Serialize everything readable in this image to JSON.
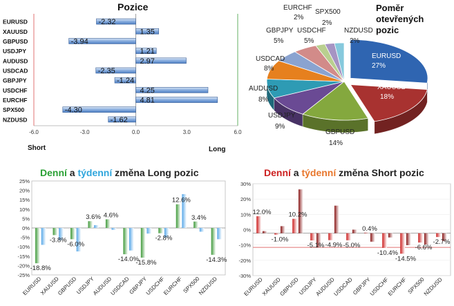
{
  "positions": {
    "title": "Pozice",
    "left_label": "Short",
    "right_label": "Long",
    "chart_data": {
      "type": "bar",
      "orientation": "horizontal",
      "title": "Pozice",
      "categories": [
        "EURUSD",
        "XAUUSD",
        "GBPUSD",
        "USDJPY",
        "AUDUSD",
        "USDCAD",
        "GBPJPY",
        "USDCHF",
        "EURCHF",
        "SPX500",
        "NZDUSD"
      ],
      "values": [
        -2.32,
        1.35,
        -3.94,
        1.21,
        2.97,
        -2.35,
        -1.24,
        4.25,
        4.81,
        -4.3,
        -1.62
      ],
      "value_labels": [
        "-2.32",
        "1.35",
        "-3.94",
        "1.21",
        "2.97",
        "-2.35",
        "-1.24",
        "4.25",
        "4.81",
        "-4.30",
        "-1.62"
      ],
      "xlim": [
        -6,
        6
      ],
      "x_ticks": [
        "-6.0",
        "-3.0",
        "0.0",
        "3.0",
        "6.0"
      ],
      "colors": {
        "bar": "#4d7fc4",
        "bar_light": "#dce8f6",
        "short_line": "#e07070",
        "long_line": "#63b163"
      }
    }
  },
  "ratio": {
    "title_lines": [
      "Poměr",
      "otevřených",
      "pozic"
    ],
    "chart_data": {
      "type": "pie",
      "labels": [
        "EURUSD",
        "XAUUSD",
        "GBPUSD",
        "USDJPY",
        "AUDUSD",
        "USDCAD",
        "GBPJPY",
        "USDCHF",
        "SPX500",
        "EURCHF",
        "NZDUSD"
      ],
      "values": [
        27,
        18,
        14,
        9,
        8,
        8,
        5,
        5,
        2,
        2,
        2
      ],
      "percent_labels": [
        "27%",
        "18%",
        "14%",
        "9%",
        "8%",
        "8%",
        "5%",
        "5%",
        "2%",
        "2%",
        "2%"
      ],
      "colors": [
        "#2f65b1",
        "#a83230",
        "#84a83e",
        "#6a4a94",
        "#2e9bb4",
        "#e6801e",
        "#8aa3d0",
        "#d28b89",
        "#b9cf8f",
        "#a694c3",
        "#86c9dd"
      ]
    }
  },
  "long_change": {
    "title_parts": [
      {
        "text": "Denní",
        "color": "#2aa034"
      },
      {
        "text": " a ",
        "color": "#222222"
      },
      {
        "text": "týdenní",
        "color": "#2ea5dc"
      },
      {
        "text": " změna Long pozic",
        "color": "#222222"
      }
    ],
    "chart_data": {
      "type": "bar",
      "title": "Denní a týdenní změna Long pozic",
      "categories": [
        "EURUSD",
        "XAUUSD",
        "GBPUSD",
        "USDJPY",
        "AUDUSD",
        "USDCAD",
        "GBPJPY",
        "USDCHF",
        "EURCHF",
        "SPX500",
        "NZDUSD"
      ],
      "series": [
        {
          "name": "Denní",
          "values": [
            -18.8,
            -3.8,
            -6.0,
            3.6,
            4.6,
            -14.0,
            -15.8,
            -2.8,
            12.6,
            3.4,
            -14.3
          ],
          "color": "#3f9a3a"
        },
        {
          "name": "týdenní",
          "values": [
            -9.0,
            -6.5,
            -12.5,
            1.5,
            -1.0,
            -12.0,
            -3.0,
            -5.0,
            18.0,
            -2.0,
            -6.0
          ],
          "color": "#58a8e8"
        }
      ],
      "data_labels": [
        "-18.8%",
        "-3.8%",
        "-6.0%",
        "3.6%",
        "4.6%",
        "-14.0%",
        "-15.8%",
        "-2.8%",
        "12.6%",
        "3.4%",
        "-14.3%"
      ],
      "ylim": [
        -25,
        25
      ],
      "y_ticks": [
        "25%",
        "20%",
        "15%",
        "10%",
        "5%",
        "0%",
        "-5%",
        "-10%",
        "-15%",
        "-20%",
        "-25%"
      ]
    }
  },
  "short_change": {
    "title_parts": [
      {
        "text": "Denní",
        "color": "#cc2020"
      },
      {
        "text": " a ",
        "color": "#222222"
      },
      {
        "text": "týdenní",
        "color": "#e8762b"
      },
      {
        "text": " změna Short pozic",
        "color": "#222222"
      }
    ],
    "chart_data": {
      "type": "bar",
      "title": "Denní a týdenní změna Short pozic",
      "categories": [
        "EURUSD",
        "XAUUSD",
        "GBPUSD",
        "USDJPY",
        "AUDUSD",
        "USDCAD",
        "GBPJPY",
        "USDCHF",
        "EURCHF",
        "SPX500",
        "NZDUSD"
      ],
      "series": [
        {
          "name": "Denní",
          "values": [
            12.0,
            -1.0,
            10.2,
            -5.1,
            -4.9,
            -5.0,
            0.4,
            -10.4,
            -14.5,
            -6.6,
            -2.7
          ],
          "color": "#cc1f1f"
        },
        {
          "name": "týdenní",
          "values": [
            1.5,
            5.0,
            31.0,
            -10.0,
            19.5,
            2.5,
            -6.0,
            -3.0,
            -8.5,
            -8.0,
            -5.5
          ],
          "color": "#8a1a1a"
        }
      ],
      "data_labels": [
        "12.0%",
        "-1.0%",
        "10.2%",
        "-5.1%",
        "-4.9%",
        "-5.0%",
        "0.4%",
        "-10.4%",
        "-14.5%",
        "-6.6%",
        "-2.7%"
      ],
      "ylim": [
        -30,
        35
      ],
      "y_ticks": [
        "30%",
        "20%",
        "10%",
        "0%",
        "-10%",
        "-20%",
        "-30%"
      ]
    }
  }
}
